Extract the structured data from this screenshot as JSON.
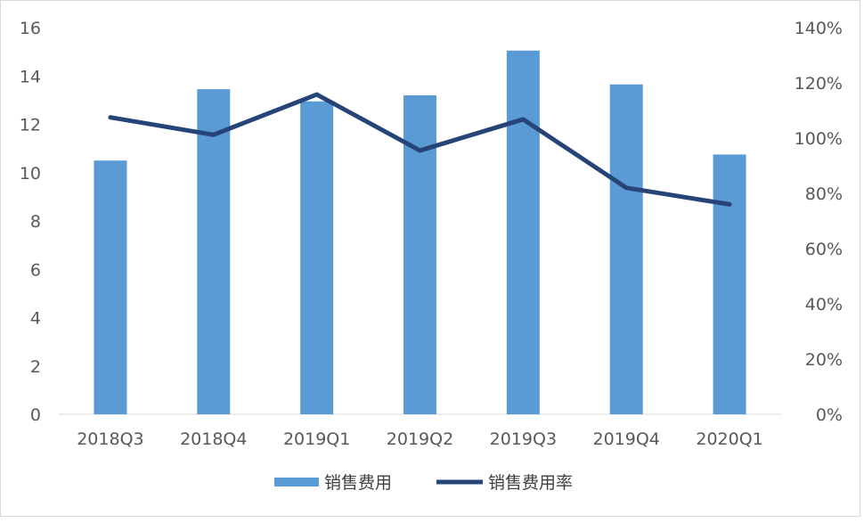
{
  "chart_data": {
    "type": "bar",
    "categories": [
      "2018Q3",
      "2018Q4",
      "2019Q1",
      "2019Q2",
      "2019Q3",
      "2019Q4",
      "2020Q1"
    ],
    "series": [
      {
        "name": "销售费用",
        "type": "bar",
        "axis": "left",
        "color": "#5B9BD5",
        "values": [
          10.5,
          13.45,
          12.95,
          13.2,
          15.05,
          13.65,
          10.75
        ]
      },
      {
        "name": "销售费用率",
        "type": "line",
        "axis": "right",
        "color": "#264478",
        "values": [
          1.075,
          1.012,
          1.158,
          0.955,
          1.068,
          0.82,
          0.76
        ]
      }
    ],
    "y_left": {
      "range": [
        0,
        16
      ],
      "ticks": [
        "0",
        "2",
        "4",
        "6",
        "8",
        "10",
        "12",
        "14",
        "16"
      ]
    },
    "y_right": {
      "range": [
        0,
        1.4
      ],
      "ticks": [
        "0%",
        "20%",
        "40%",
        "60%",
        "80%",
        "100%",
        "120%",
        "140%"
      ]
    },
    "grid": false,
    "legend_position": "bottom"
  }
}
